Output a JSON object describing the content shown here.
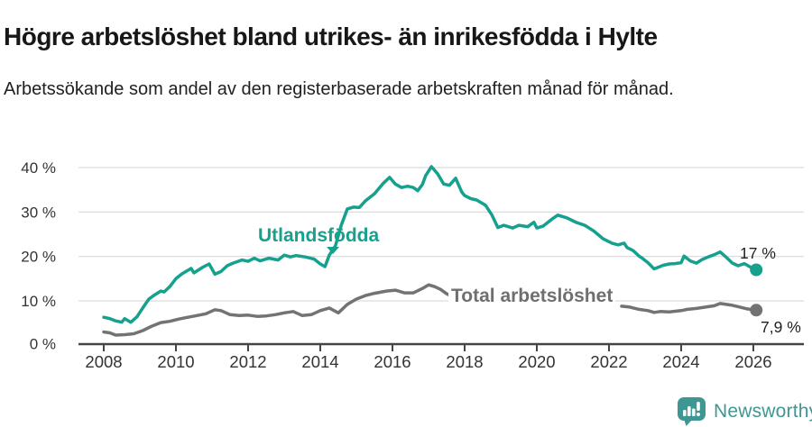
{
  "title": "Högre arbetslöshet bland utrikes- än inrikesfödda i Hylte",
  "subtitle": "Arbetssökande som andel av den registerbaserade arbetskraften månad för månad.",
  "branding": {
    "wordmark": "Newsworthy"
  },
  "annotations": {
    "utlandsfodda_last_value": "17 %",
    "total_last_value": "7,9 %"
  },
  "chart_data": {
    "type": "line",
    "title": "Högre arbetslöshet bland utrikes- än inrikesfödda i Hylte",
    "subtitle": "Arbetssökande som andel av den registerbaserade arbetskraften månad för månad.",
    "grid": "horizontal",
    "x_axis": {
      "range": [
        2007.3,
        2027.4
      ],
      "ticks": [
        {
          "value": 2008,
          "label": "2008"
        },
        {
          "value": 2010,
          "label": "2010"
        },
        {
          "value": 2012,
          "label": "2012"
        },
        {
          "value": 2014,
          "label": "2014"
        },
        {
          "value": 2016,
          "label": "2016"
        },
        {
          "value": 2018,
          "label": "2018"
        },
        {
          "value": 2020,
          "label": "2020"
        },
        {
          "value": 2022,
          "label": "2022"
        },
        {
          "value": 2024,
          "label": "2024"
        },
        {
          "value": 2026,
          "label": "2026"
        }
      ]
    },
    "y_axis": {
      "range": [
        0,
        42
      ],
      "unit": "%",
      "ticks": [
        {
          "value": 0,
          "label": "0 %"
        },
        {
          "value": 10,
          "label": "10 %"
        },
        {
          "value": 20,
          "label": "20 %"
        },
        {
          "value": 30,
          "label": "30 %"
        },
        {
          "value": 40,
          "label": "40 %"
        }
      ]
    },
    "series": [
      {
        "name": "Utlandsfödda",
        "color": "#16a08e",
        "end_label": "17 %",
        "points": [
          [
            2008.0,
            6.3
          ],
          [
            2008.17,
            6.0
          ],
          [
            2008.33,
            5.5
          ],
          [
            2008.5,
            5.2
          ],
          [
            2008.58,
            6.0
          ],
          [
            2008.75,
            5.2
          ],
          [
            2008.92,
            6.4
          ],
          [
            2009.08,
            8.4
          ],
          [
            2009.25,
            10.4
          ],
          [
            2009.42,
            11.4
          ],
          [
            2009.58,
            12.2
          ],
          [
            2009.67,
            12.0
          ],
          [
            2009.83,
            13.2
          ],
          [
            2010.0,
            15.0
          ],
          [
            2010.17,
            16.1
          ],
          [
            2010.42,
            17.3
          ],
          [
            2010.5,
            16.3
          ],
          [
            2010.75,
            17.6
          ],
          [
            2010.92,
            18.3
          ],
          [
            2011.08,
            16.0
          ],
          [
            2011.25,
            16.6
          ],
          [
            2011.42,
            17.9
          ],
          [
            2011.58,
            18.5
          ],
          [
            2011.83,
            19.2
          ],
          [
            2012.0,
            18.9
          ],
          [
            2012.17,
            19.6
          ],
          [
            2012.33,
            19.0
          ],
          [
            2012.58,
            19.6
          ],
          [
            2012.83,
            19.2
          ],
          [
            2013.0,
            20.3
          ],
          [
            2013.17,
            19.9
          ],
          [
            2013.33,
            20.2
          ],
          [
            2013.58,
            19.9
          ],
          [
            2013.83,
            19.4
          ],
          [
            2014.0,
            18.3
          ],
          [
            2014.13,
            17.7
          ],
          [
            2014.25,
            20.3
          ],
          [
            2014.42,
            22.4
          ],
          [
            2014.58,
            27.0
          ],
          [
            2014.75,
            30.7
          ],
          [
            2014.92,
            31.1
          ],
          [
            2015.08,
            31.0
          ],
          [
            2015.25,
            32.5
          ],
          [
            2015.5,
            34.1
          ],
          [
            2015.75,
            36.5
          ],
          [
            2015.92,
            37.8
          ],
          [
            2016.08,
            36.3
          ],
          [
            2016.25,
            35.5
          ],
          [
            2016.42,
            35.8
          ],
          [
            2016.58,
            35.5
          ],
          [
            2016.7,
            34.8
          ],
          [
            2016.83,
            36.2
          ],
          [
            2016.92,
            38.2
          ],
          [
            2017.08,
            40.2
          ],
          [
            2017.25,
            38.6
          ],
          [
            2017.42,
            36.3
          ],
          [
            2017.58,
            36.0
          ],
          [
            2017.75,
            37.6
          ],
          [
            2017.92,
            34.5
          ],
          [
            2018.0,
            33.7
          ],
          [
            2018.17,
            33.0
          ],
          [
            2018.33,
            32.7
          ],
          [
            2018.58,
            31.5
          ],
          [
            2018.75,
            29.4
          ],
          [
            2018.92,
            26.5
          ],
          [
            2019.08,
            27.0
          ],
          [
            2019.33,
            26.4
          ],
          [
            2019.5,
            27.0
          ],
          [
            2019.75,
            26.7
          ],
          [
            2019.92,
            27.7
          ],
          [
            2020.0,
            26.4
          ],
          [
            2020.17,
            26.8
          ],
          [
            2020.42,
            28.4
          ],
          [
            2020.58,
            29.3
          ],
          [
            2020.83,
            28.7
          ],
          [
            2021.08,
            27.7
          ],
          [
            2021.33,
            27.0
          ],
          [
            2021.58,
            25.7
          ],
          [
            2021.83,
            24.0
          ],
          [
            2022.08,
            23.0
          ],
          [
            2022.25,
            22.6
          ],
          [
            2022.42,
            23.0
          ],
          [
            2022.5,
            22.0
          ],
          [
            2022.67,
            21.3
          ],
          [
            2022.83,
            20.1
          ],
          [
            2022.92,
            19.6
          ],
          [
            2023.08,
            18.6
          ],
          [
            2023.25,
            17.2
          ],
          [
            2023.5,
            18.0
          ],
          [
            2023.67,
            18.3
          ],
          [
            2023.83,
            18.4
          ],
          [
            2024.0,
            18.6
          ],
          [
            2024.08,
            20.1
          ],
          [
            2024.25,
            19.0
          ],
          [
            2024.42,
            18.5
          ],
          [
            2024.58,
            19.3
          ],
          [
            2024.75,
            19.9
          ],
          [
            2024.92,
            20.4
          ],
          [
            2025.08,
            21.0
          ],
          [
            2025.25,
            19.8
          ],
          [
            2025.42,
            18.5
          ],
          [
            2025.58,
            17.9
          ],
          [
            2025.75,
            18.4
          ],
          [
            2025.92,
            17.6
          ],
          [
            2026.08,
            17.0
          ]
        ]
      },
      {
        "name": "Total arbetslöshet",
        "color": "#737373",
        "end_label": "7,9 %",
        "points": [
          [
            2008.0,
            3.0
          ],
          [
            2008.17,
            2.8
          ],
          [
            2008.33,
            2.3
          ],
          [
            2008.58,
            2.4
          ],
          [
            2008.83,
            2.6
          ],
          [
            2009.08,
            3.3
          ],
          [
            2009.33,
            4.3
          ],
          [
            2009.58,
            5.1
          ],
          [
            2009.83,
            5.4
          ],
          [
            2010.08,
            5.9
          ],
          [
            2010.33,
            6.3
          ],
          [
            2010.58,
            6.7
          ],
          [
            2010.83,
            7.1
          ],
          [
            2011.08,
            8.0
          ],
          [
            2011.25,
            7.8
          ],
          [
            2011.5,
            6.9
          ],
          [
            2011.75,
            6.7
          ],
          [
            2012.0,
            6.8
          ],
          [
            2012.25,
            6.5
          ],
          [
            2012.5,
            6.6
          ],
          [
            2012.75,
            6.9
          ],
          [
            2013.0,
            7.3
          ],
          [
            2013.25,
            7.6
          ],
          [
            2013.5,
            6.7
          ],
          [
            2013.75,
            6.9
          ],
          [
            2014.0,
            7.8
          ],
          [
            2014.25,
            8.4
          ],
          [
            2014.5,
            7.3
          ],
          [
            2014.75,
            9.2
          ],
          [
            2015.0,
            10.4
          ],
          [
            2015.25,
            11.2
          ],
          [
            2015.5,
            11.7
          ],
          [
            2015.83,
            12.2
          ],
          [
            2016.08,
            12.4
          ],
          [
            2016.33,
            11.8
          ],
          [
            2016.58,
            11.8
          ],
          [
            2016.83,
            12.8
          ],
          [
            2017.0,
            13.6
          ],
          [
            2017.17,
            13.2
          ],
          [
            2017.33,
            12.6
          ],
          [
            2017.5,
            11.6
          ],
          [
            2017.6,
            11.2
          ],
          null,
          [
            2022.35,
            8.8
          ],
          [
            2022.58,
            8.6
          ],
          [
            2022.83,
            8.1
          ],
          [
            2023.08,
            7.8
          ],
          [
            2023.25,
            7.4
          ],
          [
            2023.42,
            7.6
          ],
          [
            2023.67,
            7.5
          ],
          [
            2024.0,
            7.8
          ],
          [
            2024.17,
            8.1
          ],
          [
            2024.42,
            8.3
          ],
          [
            2024.67,
            8.6
          ],
          [
            2024.92,
            8.9
          ],
          [
            2025.08,
            9.4
          ],
          [
            2025.25,
            9.2
          ],
          [
            2025.42,
            9.0
          ],
          [
            2025.58,
            8.7
          ],
          [
            2025.83,
            8.2
          ],
          [
            2026.08,
            7.9
          ]
        ]
      }
    ]
  }
}
